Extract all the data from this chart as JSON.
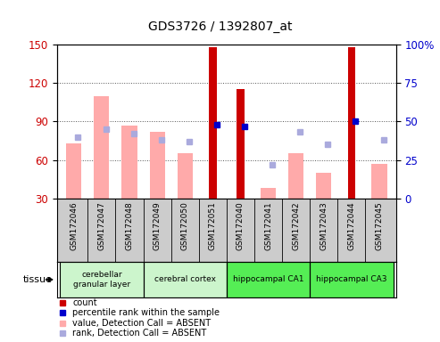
{
  "title": "GDS3726 / 1392807_at",
  "samples": [
    "GSM172046",
    "GSM172047",
    "GSM172048",
    "GSM172049",
    "GSM172050",
    "GSM172051",
    "GSM172040",
    "GSM172041",
    "GSM172042",
    "GSM172043",
    "GSM172044",
    "GSM172045"
  ],
  "count_values": [
    null,
    null,
    null,
    null,
    null,
    148,
    115,
    null,
    null,
    null,
    148,
    null
  ],
  "percentile_rank": [
    null,
    null,
    null,
    null,
    null,
    48,
    47,
    null,
    null,
    null,
    50,
    null
  ],
  "absent_value": [
    73,
    110,
    87,
    82,
    65,
    null,
    null,
    38,
    65,
    50,
    null,
    57
  ],
  "absent_rank": [
    40,
    45,
    42,
    38,
    37,
    null,
    null,
    22,
    43,
    35,
    null,
    38
  ],
  "ylim_left": [
    30,
    150
  ],
  "ylim_right": [
    0,
    100
  ],
  "yticks_left": [
    30,
    60,
    90,
    120,
    150
  ],
  "yticks_right": [
    0,
    25,
    50,
    75,
    100
  ],
  "tissues": [
    {
      "label": "cerebellar\ngranular layer",
      "start": 0,
      "end": 2,
      "color": "#d8f8d8"
    },
    {
      "label": "cerebral cortex",
      "start": 3,
      "end": 5,
      "color": "#d8f8d8"
    },
    {
      "label": "hippocampal CA1",
      "start": 6,
      "end": 8,
      "color": "#55ee55"
    },
    {
      "label": "hippocampal CA3",
      "start": 9,
      "end": 11,
      "color": "#55ee55"
    }
  ],
  "count_color": "#cc0000",
  "rank_color": "#0000cc",
  "absent_value_color": "#ffaaaa",
  "absent_rank_color": "#aaaadd",
  "bg_color": "#ffffff",
  "plot_bg": "#ffffff",
  "grid_color": "#555555",
  "tick_label_color_left": "#cc0000",
  "tick_label_color_right": "#0000cc",
  "sample_area_color": "#cccccc",
  "legend_items": [
    {
      "label": "count",
      "color": "#cc0000"
    },
    {
      "label": "percentile rank within the sample",
      "color": "#0000cc"
    },
    {
      "label": "value, Detection Call = ABSENT",
      "color": "#ffaaaa"
    },
    {
      "label": "rank, Detection Call = ABSENT",
      "color": "#aaaadd"
    }
  ]
}
